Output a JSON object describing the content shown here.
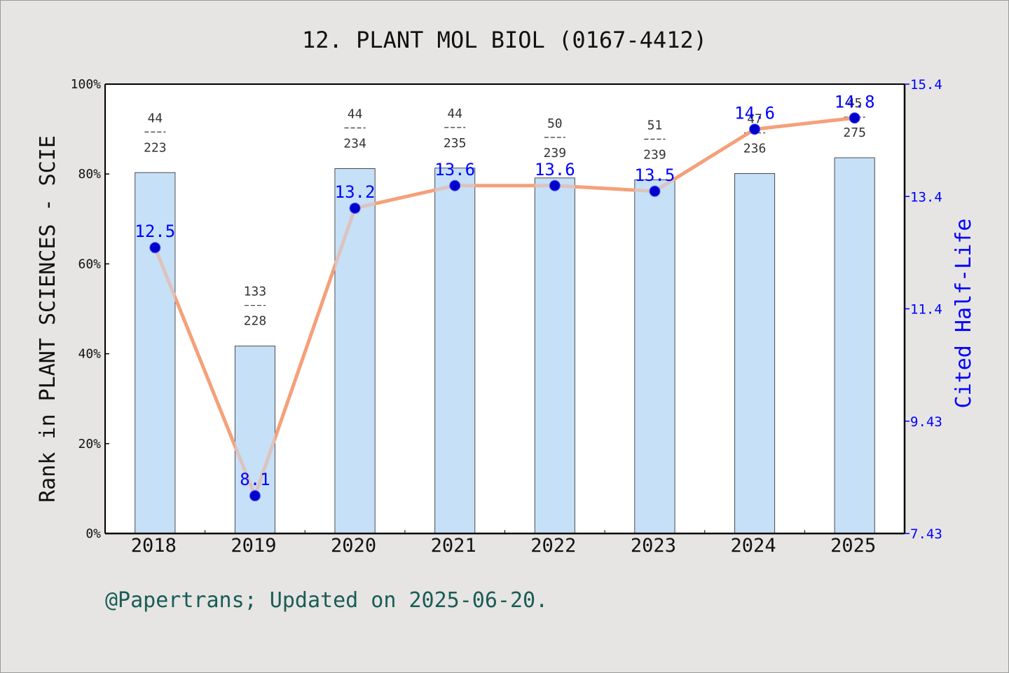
{
  "chart_data": {
    "type": "bar",
    "title": "12. PLANT MOL BIOL (0167-4412)",
    "categories": [
      "2018",
      "2019",
      "2020",
      "2021",
      "2022",
      "2023",
      "2024",
      "2025"
    ],
    "ylabel": "Rank in PLANT SCIENCES - SCIE",
    "y2label": "Cited Half-Life",
    "ylim": [
      0,
      100
    ],
    "y2lim": [
      7.43,
      15.4
    ],
    "y_ticks": [
      "0%",
      "20%",
      "40%",
      "60%",
      "80%",
      "100%"
    ],
    "y2_ticks": [
      "7.43",
      "9.43",
      "11.4",
      "13.4",
      "15.4"
    ],
    "series": [
      {
        "type": "bar",
        "values": [
          80.3,
          41.7,
          81.2,
          81.3,
          79.1,
          78.7,
          80.1,
          83.6
        ],
        "rank": [
          "44",
          "133",
          "44",
          "44",
          "50",
          "51",
          "47",
          "45"
        ],
        "total": [
          "223",
          "228",
          "234",
          "235",
          "239",
          "239",
          "236",
          "275"
        ],
        "color": "#c6e0f7"
      },
      {
        "type": "line",
        "axis": "right",
        "values": [
          12.5,
          8.1,
          13.2,
          13.6,
          13.6,
          13.5,
          14.6,
          14.8
        ],
        "labels": [
          "12.5",
          "8.1",
          "13.2",
          "13.6",
          "13.6",
          "13.5",
          "14.6",
          "14.8"
        ],
        "color": "#f5a07a",
        "marker_color": "#0000cc",
        "label_color": "#0000ff"
      }
    ],
    "legend": "none",
    "grid": false,
    "footer": "@Papertrans; Updated on 2025-06-20.",
    "colors": {
      "axis_right": "#0000ff",
      "footer": "#1a5c56",
      "background": "#e6e5e3",
      "plot_background": "#ffffff"
    }
  }
}
